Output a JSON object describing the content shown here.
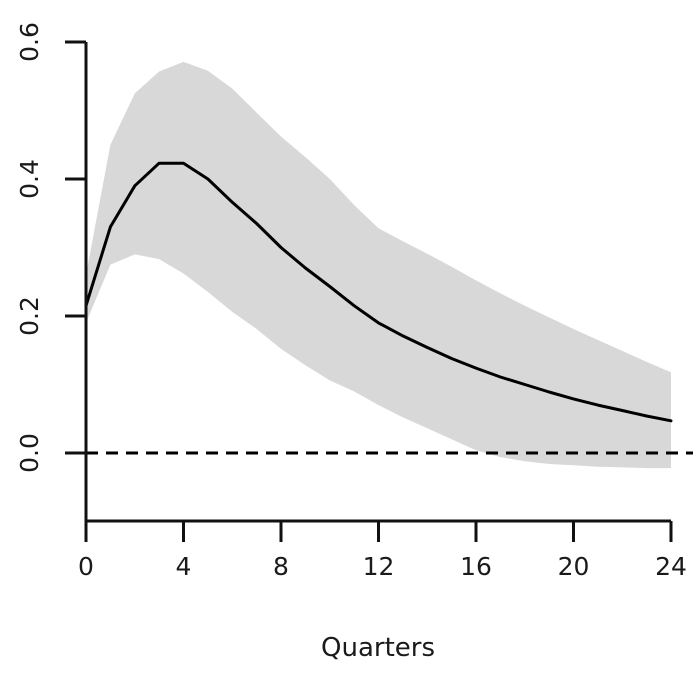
{
  "chart_data": {
    "type": "line",
    "title": "",
    "xlabel": "Quarters",
    "ylabel": "",
    "legend": "none",
    "grid": false,
    "xlim": [
      0,
      24
    ],
    "ylim": [
      -0.1,
      0.6
    ],
    "x_ticks": [
      0,
      4,
      8,
      12,
      16,
      20,
      24
    ],
    "x_tick_labels": [
      "0",
      "4",
      "8",
      "12",
      "16",
      "20",
      "24"
    ],
    "y_ticks": [
      0.0,
      0.2,
      0.4,
      0.6
    ],
    "y_tick_labels": [
      "0.0",
      "0.2",
      "0.4",
      "0.6"
    ],
    "x": [
      0,
      1,
      2,
      3,
      4,
      5,
      6,
      7,
      8,
      9,
      10,
      11,
      12,
      13,
      14,
      15,
      16,
      17,
      18,
      19,
      20,
      21,
      22,
      23,
      24
    ],
    "series": [
      {
        "name": "impulse-response",
        "style": "solid",
        "values": [
          0.215,
          0.33,
          0.39,
          0.423,
          0.423,
          0.4,
          0.366,
          0.335,
          0.3,
          0.27,
          0.243,
          0.215,
          0.19,
          0.171,
          0.154,
          0.138,
          0.124,
          0.111,
          0.1,
          0.089,
          0.079,
          0.07,
          0.062,
          0.054,
          0.047
        ]
      }
    ],
    "band": {
      "name": "confidence-band",
      "upper": [
        0.26,
        0.45,
        0.525,
        0.557,
        0.571,
        0.558,
        0.532,
        0.497,
        0.462,
        0.432,
        0.4,
        0.362,
        0.328,
        0.309,
        0.291,
        0.272,
        0.252,
        0.233,
        0.215,
        0.198,
        0.181,
        0.165,
        0.149,
        0.133,
        0.118
      ],
      "lower": [
        0.19,
        0.275,
        0.29,
        0.283,
        0.262,
        0.235,
        0.206,
        0.181,
        0.152,
        0.128,
        0.106,
        0.09,
        0.07,
        0.052,
        0.036,
        0.02,
        0.004,
        -0.006,
        -0.012,
        -0.016,
        -0.018,
        -0.02,
        -0.021,
        -0.022,
        -0.022
      ]
    },
    "reference_line": {
      "y": 0,
      "style": "dashed"
    },
    "colors": {
      "line": "#000000",
      "band": "#d8d8d8",
      "axis": "#111111",
      "text": "#1a1a1a",
      "background": "#ffffff"
    }
  }
}
